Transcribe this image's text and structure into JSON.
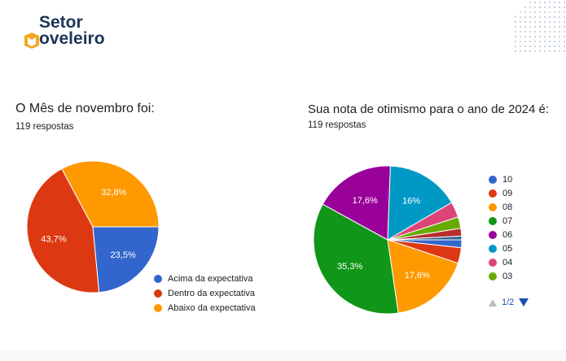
{
  "logo": {
    "line1": "Setor",
    "line2": "oveleiro"
  },
  "left": {
    "title": "O Mês de novembro foi:",
    "responses": "119 respostas"
  },
  "right": {
    "title": "Sua nota de otimismo para o ano de 2024 é:",
    "responses": "119 respostas",
    "pager": "1/2"
  },
  "chart_data": [
    {
      "type": "pie",
      "title": "O Mês de novembro foi:",
      "slices": [
        {
          "label": "Acima da expectativa",
          "value": 23.5,
          "display": "23,5%",
          "color": "#3366cc"
        },
        {
          "label": "Dentro da expectativa",
          "value": 43.7,
          "display": "43,7%",
          "color": "#dc3912"
        },
        {
          "label": "Abaixo da expectativa",
          "value": 32.8,
          "display": "32,8%",
          "color": "#ff9900"
        }
      ]
    },
    {
      "type": "pie",
      "title": "Sua nota de otimismo para o ano de 2024 é:",
      "slices": [
        {
          "label": "10",
          "value": 1.7,
          "display": "",
          "color": "#3366cc"
        },
        {
          "label": "09",
          "value": 3.4,
          "display": "",
          "color": "#dc3912"
        },
        {
          "label": "08",
          "value": 17.6,
          "display": "17,6%",
          "color": "#ff9900"
        },
        {
          "label": "07",
          "value": 35.3,
          "display": "35,3%",
          "color": "#109618"
        },
        {
          "label": "06",
          "value": 17.6,
          "display": "17,6%",
          "color": "#990099"
        },
        {
          "label": "05",
          "value": 16.0,
          "display": "16%",
          "color": "#0099c6"
        },
        {
          "label": "04",
          "value": 3.4,
          "display": "",
          "color": "#dd4477"
        },
        {
          "label": "03",
          "value": 2.5,
          "display": "",
          "color": "#66aa00"
        },
        {
          "label": "",
          "value": 1.7,
          "display": "",
          "color": "#b82e2e"
        },
        {
          "label": "",
          "value": 0.8,
          "display": "",
          "color": "#316395"
        }
      ],
      "legend_visible": [
        "10",
        "09",
        "08",
        "07",
        "06",
        "05",
        "04",
        "03"
      ]
    }
  ]
}
